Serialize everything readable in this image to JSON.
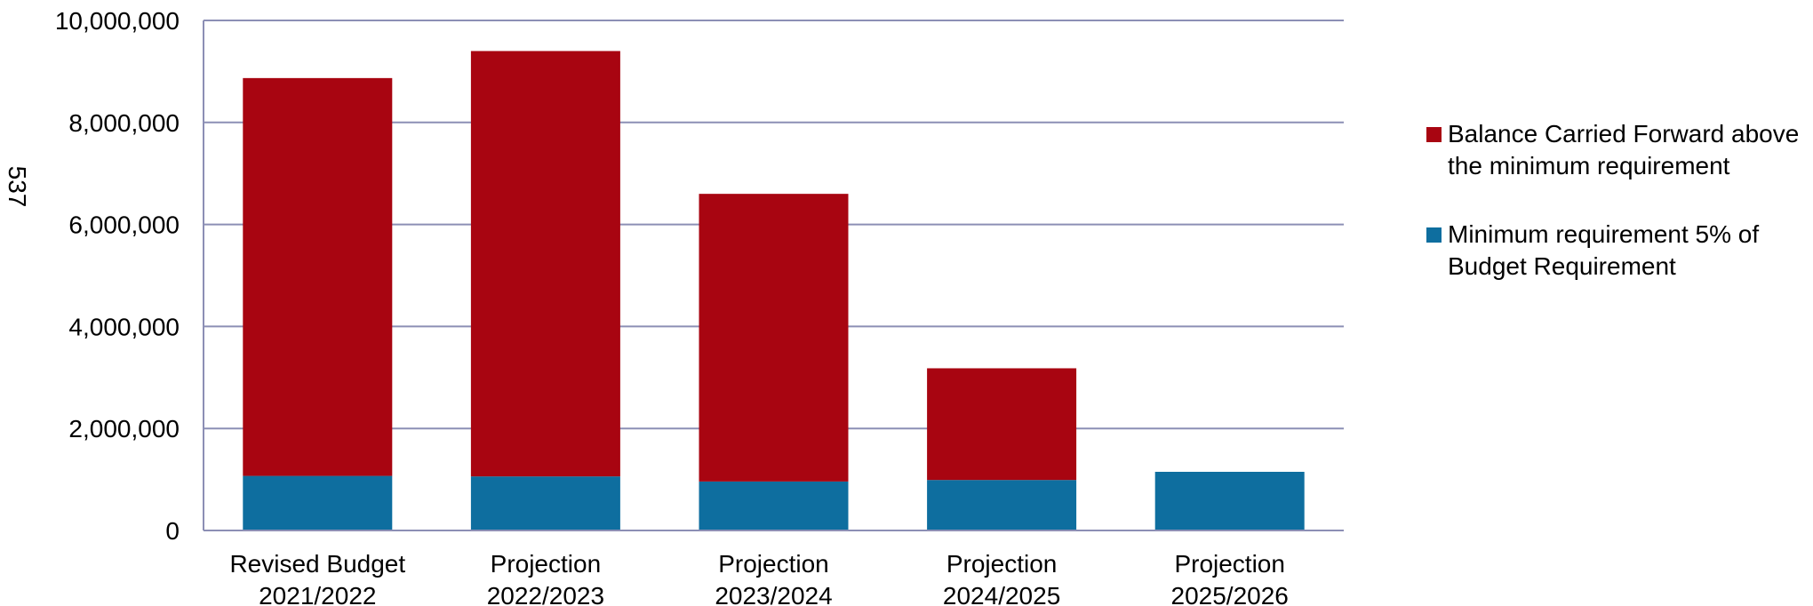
{
  "chart_data": {
    "type": "bar",
    "stacked": true,
    "categories": [
      [
        "Revised Budget",
        "2021/2022"
      ],
      [
        "Projection",
        "2022/2023"
      ],
      [
        "Projection",
        "2023/2024"
      ],
      [
        "Projection",
        "2024/2025"
      ],
      [
        "Projection",
        "2025/2026"
      ]
    ],
    "series": [
      {
        "name": "Minimum requirement 5% of Budget Requirement",
        "color": "#0E6E9F",
        "values": [
          1070000,
          1060000,
          960000,
          990000,
          1150000
        ]
      },
      {
        "name": "Balance Carried Forward above the minimum requirement",
        "color": "#A80511",
        "values": [
          7800000,
          8340000,
          5640000,
          2190000,
          0
        ]
      }
    ],
    "ylim": [
      0,
      10000000
    ],
    "yticks": [
      0,
      2000000,
      4000000,
      6000000,
      8000000,
      10000000
    ],
    "ytick_labels": [
      "0",
      "2,000,000",
      "4,000,000",
      "6,000,000",
      "8,000,000",
      "10,000,000"
    ],
    "grid": true,
    "legend_position": "right",
    "title": "",
    "xlabel": "",
    "ylabel": "",
    "side_label": "537",
    "colors": {
      "grid": "#8C8FB5",
      "axis": "#8C8FB5"
    }
  }
}
